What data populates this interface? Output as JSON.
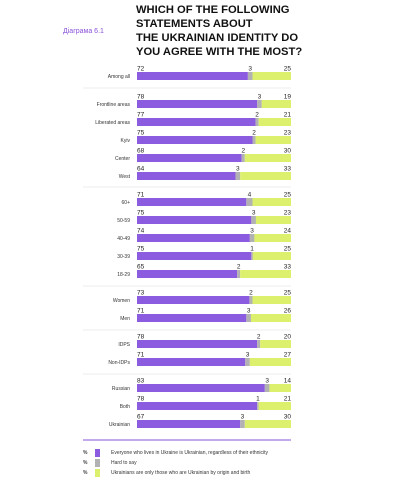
{
  "figure_label": "Діаграма 6.1",
  "title_lines": [
    "WHICH OF THE FOLLOWING",
    "STATEMENTS ABOUT",
    "THE UKRAINIAN IDENTITY DO",
    "YOU AGREE WITH THE MOST?"
  ],
  "colors": {
    "purple": "#8c5ce0",
    "gray": "#b2b2b2",
    "yellow": "#dcf06e",
    "accent": "#8a52d8"
  },
  "legend": [
    {
      "pct": "%",
      "label": "Everyone who lives in Ukraine is Ukrainian, regardless of their ethnicity",
      "color": "#8c5ce0"
    },
    {
      "pct": "%",
      "label": "Hard to say",
      "color": "#b2b2b2"
    },
    {
      "pct": "%",
      "label": "Ukrainians are only those who are Ukrainian by origin and birth",
      "color": "#dcf06e"
    }
  ],
  "chart_data": {
    "type": "bar",
    "orientation": "horizontal",
    "stacked": true,
    "xlim": [
      0,
      100
    ],
    "series": [
      {
        "name": "Everyone who lives in Ukraine is Ukrainian, regardless of their ethnicity",
        "color": "#8c5ce0",
        "values": [
          72,
          78,
          77,
          75,
          68,
          64,
          71,
          75,
          74,
          75,
          65,
          73,
          71,
          78,
          71,
          83,
          78,
          67
        ]
      },
      {
        "name": "Hard to say",
        "color": "#b2b2b2",
        "values": [
          3,
          3,
          2,
          2,
          2,
          3,
          4,
          3,
          3,
          1,
          2,
          2,
          3,
          2,
          3,
          3,
          1,
          3
        ]
      },
      {
        "name": "Ukrainians are only those who are Ukrainian by origin and birth",
        "color": "#dcf06e",
        "values": [
          25,
          19,
          21,
          23,
          30,
          33,
          25,
          23,
          24,
          25,
          33,
          25,
          26,
          20,
          27,
          14,
          21,
          30
        ]
      }
    ],
    "categories": [
      "Among all",
      "Frontline areas",
      "Liberated areas",
      "Kyiv",
      "Center",
      "West",
      "60+",
      "50-59",
      "40-49",
      "30-39",
      "18-29",
      "Women",
      "Men",
      "IDPS",
      "Non-IDPs",
      "Russian",
      "Both",
      "Ukrainian"
    ],
    "groups": [
      [
        0
      ],
      [
        1,
        2,
        3,
        4,
        5
      ],
      [
        6,
        7,
        8,
        9,
        10
      ],
      [
        11,
        12
      ],
      [
        13,
        14
      ],
      [
        15,
        16,
        17
      ]
    ]
  }
}
